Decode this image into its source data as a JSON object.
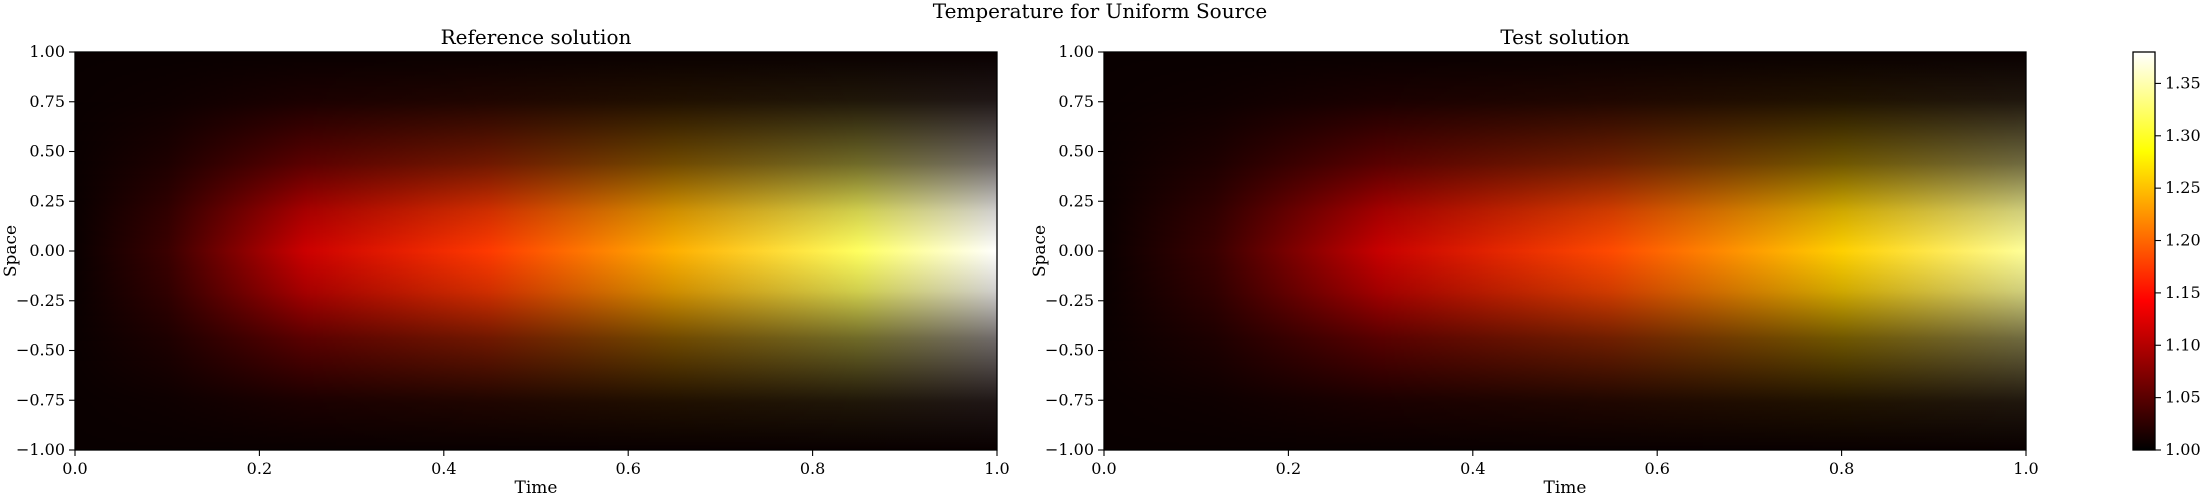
{
  "figure": {
    "title": "Temperature for Uniform Source",
    "colorbar_ticks": [
      "1.00",
      "1.05",
      "1.10",
      "1.15",
      "1.20",
      "1.25",
      "1.30",
      "1.35"
    ]
  },
  "chart_data": [
    {
      "type": "heatmap",
      "title": "Reference solution",
      "xlabel": "Time",
      "ylabel": "Space",
      "xlim": [
        0.0,
        1.0
      ],
      "ylim": [
        -1.0,
        1.0
      ],
      "xticks": [
        "0.0",
        "0.2",
        "0.4",
        "0.6",
        "0.8",
        "1.0"
      ],
      "yticks": [
        "1.00",
        "0.75",
        "0.50",
        "0.25",
        "0.00",
        "−0.25",
        "−0.50",
        "−0.75",
        "−1.00"
      ],
      "colormap": "hot",
      "vmin": 1.0,
      "vmax": 1.38,
      "field": "temperature rising with time, peaked at space 0.00, near 1.00 at space ±1.00 and at time 0.0, maximum about 1.38 at time 1.0, space 0.00"
    },
    {
      "type": "heatmap",
      "title": "Test solution",
      "xlabel": "Time",
      "ylabel": "Space",
      "xlim": [
        0.0,
        1.0
      ],
      "ylim": [
        -1.0,
        1.0
      ],
      "xticks": [
        "0.0",
        "0.2",
        "0.4",
        "0.6",
        "0.8",
        "1.0"
      ],
      "yticks": [
        "1.00",
        "0.75",
        "0.50",
        "0.25",
        "0.00",
        "−0.25",
        "−0.50",
        "−0.75",
        "−1.00"
      ],
      "colormap": "hot",
      "vmin": 1.0,
      "vmax": 1.38,
      "field": "temperature rising with time, peaked at space 0.00, near 1.00 at space ±1.00 and at time 0.0, maximum about 1.33 at time 1.0, space 0.00"
    }
  ],
  "colors": {
    "hot_black": "#000000",
    "hot_dark_red": "#2a0000",
    "hot_red": "#ff0000",
    "hot_orange": "#ff8000",
    "hot_yellow": "#ffff00",
    "hot_white": "#ffffff"
  }
}
